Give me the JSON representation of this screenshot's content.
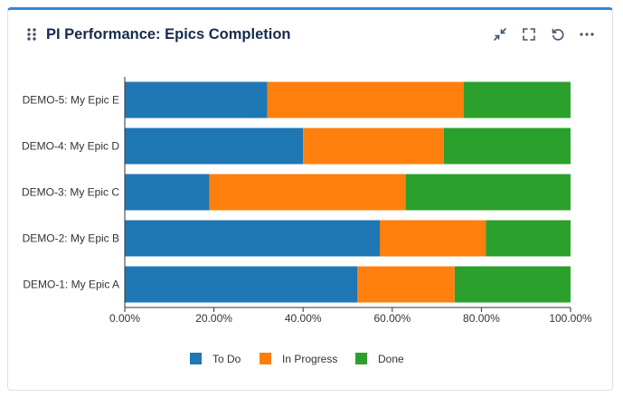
{
  "widget": {
    "title": "PI Performance: Epics Completion",
    "icons": [
      "drag-handle-icon",
      "collapse-icon",
      "fullscreen-icon",
      "refresh-icon",
      "more-icon"
    ]
  },
  "chart_data": {
    "type": "bar",
    "orientation": "horizontal",
    "stacked": true,
    "categories": [
      "DEMO-5: My Epic E",
      "DEMO-4: My Epic D",
      "DEMO-3: My Epic C",
      "DEMO-2: My Epic B",
      "DEMO-1: My Epic A"
    ],
    "series": [
      {
        "name": "To Do",
        "color": "#1f77b4",
        "values": [
          32,
          40,
          19,
          57.2,
          52.2
        ]
      },
      {
        "name": "In Progress",
        "color": "#ff7f0e",
        "values": [
          44,
          31.6,
          44,
          23.8,
          21.8
        ]
      },
      {
        "name": "Done",
        "color": "#2ca02c",
        "values": [
          24,
          28.4,
          37,
          19,
          26
        ]
      }
    ],
    "xlim": [
      0,
      100
    ],
    "xticks": [
      "0.00%",
      "20.00%",
      "40.00%",
      "60.00%",
      "80.00%",
      "100.00%"
    ],
    "legend_position": "bottom",
    "grid": false
  }
}
